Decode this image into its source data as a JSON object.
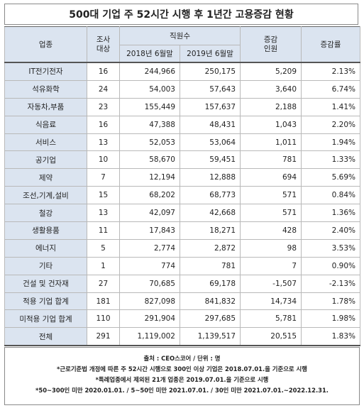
{
  "title": "500대 기업 주 52시간 시행 후 1년간 고용증감 현황",
  "headers": {
    "industry": "업종",
    "target": "조사\n대상",
    "staff": "직원수",
    "y2018": "2018년 6월말",
    "y2019": "2019년 6월말",
    "change": "증감\n인원",
    "rate": "증감률"
  },
  "rows": [
    {
      "name": "IT전기전자",
      "target": "16",
      "y2018": "244,966",
      "y2019": "250,175",
      "change": "5,209",
      "rate": "2.13%"
    },
    {
      "name": "석유화학",
      "target": "24",
      "y2018": "54,003",
      "y2019": "57,643",
      "change": "3,640",
      "rate": "6.74%"
    },
    {
      "name": "자동차,부품",
      "target": "23",
      "y2018": "155,449",
      "y2019": "157,637",
      "change": "2,188",
      "rate": "1.41%"
    },
    {
      "name": "식음료",
      "target": "16",
      "y2018": "47,388",
      "y2019": "48,431",
      "change": "1,043",
      "rate": "2.20%"
    },
    {
      "name": "서비스",
      "target": "13",
      "y2018": "52,053",
      "y2019": "53,064",
      "change": "1,011",
      "rate": "1.94%"
    },
    {
      "name": "공기업",
      "target": "10",
      "y2018": "58,670",
      "y2019": "59,451",
      "change": "781",
      "rate": "1.33%"
    },
    {
      "name": "제약",
      "target": "7",
      "y2018": "12,194",
      "y2019": "12,888",
      "change": "694",
      "rate": "5.69%"
    },
    {
      "name": "조선,기계,설비",
      "target": "15",
      "y2018": "68,202",
      "y2019": "68,773",
      "change": "571",
      "rate": "0.84%"
    },
    {
      "name": "철강",
      "target": "13",
      "y2018": "42,097",
      "y2019": "42,668",
      "change": "571",
      "rate": "1.36%"
    },
    {
      "name": "생활용품",
      "target": "11",
      "y2018": "17,843",
      "y2019": "18,271",
      "change": "428",
      "rate": "2.40%"
    },
    {
      "name": "에너지",
      "target": "5",
      "y2018": "2,774",
      "y2019": "2,872",
      "change": "98",
      "rate": "3.53%"
    },
    {
      "name": "기타",
      "target": "1",
      "y2018": "774",
      "y2019": "781",
      "change": "7",
      "rate": "0.90%"
    },
    {
      "name": "건설 및 건자재",
      "target": "27",
      "y2018": "70,685",
      "y2019": "69,178",
      "change": "-1,507",
      "rate": "-2.13%"
    }
  ],
  "summary": [
    {
      "name": "적용 기업 합계",
      "target": "181",
      "y2018": "827,098",
      "y2019": "841,832",
      "change": "14,734",
      "rate": "1.78%"
    },
    {
      "name": "미적용 기업 합계",
      "target": "110",
      "y2018": "291,904",
      "y2019": "297,685",
      "change": "5,781",
      "rate": "1.98%"
    },
    {
      "name": "전체",
      "target": "291",
      "y2018": "1,119,002",
      "y2019": "1,139,517",
      "change": "20,515",
      "rate": "1.83%"
    }
  ],
  "notes": [
    "출처 : CEO스코어 / 단위 : 명",
    "*근로기준법 개정에 따른 주 52시간 시행으로 300인 이상 기업은 2018.07.01.을 기준으로 시행",
    "*특례업종에서 제외된 21개 업종은 2019.07.01.을 기준으로 시행",
    "*50~300인 미만 2020.01.01. / 5~50인 미만 2021.07.01. / 30인 미만 2021.07.01.~2022.12.31."
  ]
}
